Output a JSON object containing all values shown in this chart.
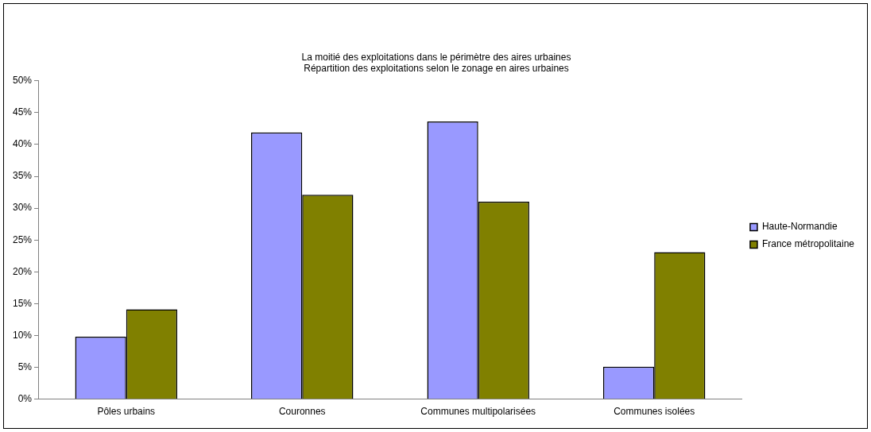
{
  "chart_data": {
    "type": "bar",
    "title": "La moitié des exploitations dans le périmètre des aires urbaines",
    "subtitle": "Répartition des exploitations selon le zonage en aires urbaines",
    "categories": [
      "Pôles urbains",
      "Couronnes",
      "Communes multipolarisées",
      "Communes isolées"
    ],
    "series": [
      {
        "name": "Haute-Normandie",
        "color": "#9999ff",
        "values": [
          9.8,
          41.9,
          43.6,
          5.1
        ]
      },
      {
        "name": "France métropolitaine",
        "color": "#808000",
        "values": [
          14.1,
          32.1,
          31.0,
          23.1
        ]
      }
    ],
    "ylim": [
      0,
      50
    ],
    "yticks": [
      {
        "value": 0,
        "label": "0%"
      },
      {
        "value": 5,
        "label": "5%"
      },
      {
        "value": 10,
        "label": "10%"
      },
      {
        "value": 15,
        "label": "15%"
      },
      {
        "value": 20,
        "label": "20%"
      },
      {
        "value": 25,
        "label": "25%"
      },
      {
        "value": 30,
        "label": "30%"
      },
      {
        "value": 35,
        "label": "35%"
      },
      {
        "value": 40,
        "label": "40%"
      },
      {
        "value": 45,
        "label": "45%"
      },
      {
        "value": 50,
        "label": "50%"
      }
    ],
    "grid": false,
    "legend": "right"
  }
}
